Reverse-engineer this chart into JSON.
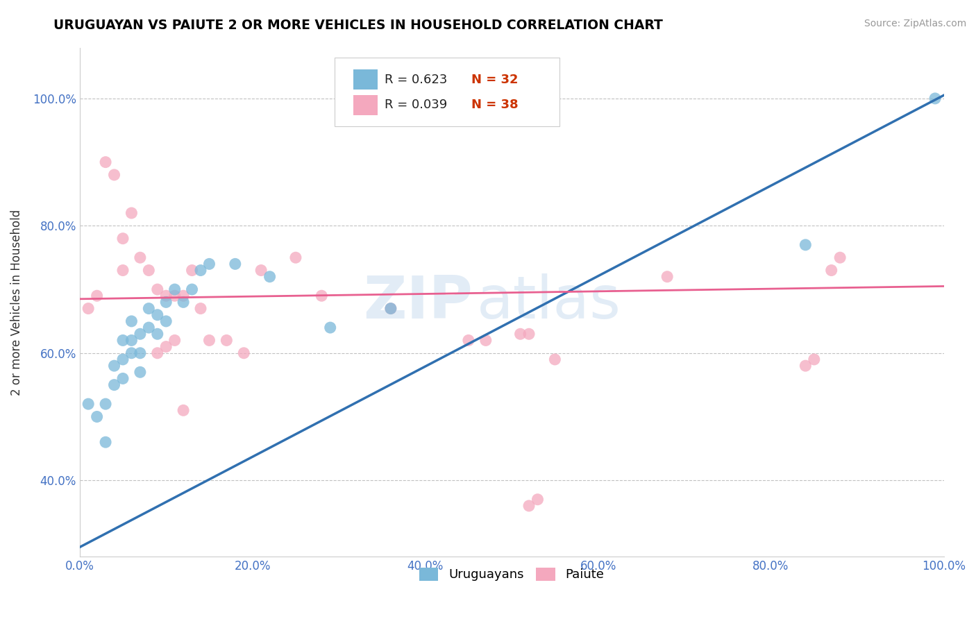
{
  "title": "URUGUAYAN VS PAIUTE 2 OR MORE VEHICLES IN HOUSEHOLD CORRELATION CHART",
  "source_text": "Source: ZipAtlas.com",
  "ylabel": "2 or more Vehicles in Household",
  "xlim": [
    0.0,
    1.0
  ],
  "ylim": [
    0.28,
    1.08
  ],
  "xticks": [
    0.0,
    0.2,
    0.4,
    0.6,
    0.8,
    1.0
  ],
  "yticks": [
    0.4,
    0.6,
    0.8,
    1.0
  ],
  "xticklabels": [
    "0.0%",
    "20.0%",
    "40.0%",
    "60.0%",
    "80.0%",
    "100.0%"
  ],
  "yticklabels": [
    "40.0%",
    "60.0%",
    "80.0%",
    "100.0%"
  ],
  "legend_r_blue": "R = 0.623",
  "legend_n_blue": "N = 32",
  "legend_r_pink": "R = 0.039",
  "legend_n_pink": "N = 38",
  "legend_label_blue": "Uruguayans",
  "legend_label_pink": "Paiute",
  "blue_color": "#7ab8d9",
  "pink_color": "#f4a8be",
  "trendline_blue_color": "#3070b0",
  "trendline_pink_color": "#e86090",
  "watermark_zip": "ZIP",
  "watermark_atlas": "atlas",
  "uruguayan_x": [
    0.01,
    0.02,
    0.03,
    0.03,
    0.04,
    0.04,
    0.05,
    0.05,
    0.05,
    0.06,
    0.06,
    0.06,
    0.07,
    0.07,
    0.07,
    0.08,
    0.08,
    0.09,
    0.09,
    0.1,
    0.1,
    0.11,
    0.12,
    0.13,
    0.14,
    0.15,
    0.18,
    0.22,
    0.29,
    0.36,
    0.84,
    0.99
  ],
  "uruguayan_y": [
    0.52,
    0.5,
    0.46,
    0.52,
    0.55,
    0.58,
    0.56,
    0.59,
    0.62,
    0.6,
    0.62,
    0.65,
    0.57,
    0.6,
    0.63,
    0.64,
    0.67,
    0.63,
    0.66,
    0.65,
    0.68,
    0.7,
    0.68,
    0.7,
    0.73,
    0.74,
    0.74,
    0.72,
    0.64,
    0.67,
    0.77,
    1.0
  ],
  "paiute_x": [
    0.01,
    0.02,
    0.03,
    0.04,
    0.05,
    0.05,
    0.06,
    0.07,
    0.08,
    0.09,
    0.1,
    0.11,
    0.12,
    0.13,
    0.14,
    0.15,
    0.17,
    0.19,
    0.21,
    0.25,
    0.28,
    0.36,
    0.45,
    0.47,
    0.51,
    0.52,
    0.55,
    0.68,
    0.84,
    0.85,
    0.87,
    0.88,
    0.09,
    0.1,
    0.11,
    0.12,
    0.52,
    0.53
  ],
  "paiute_y": [
    0.67,
    0.69,
    0.9,
    0.88,
    0.73,
    0.78,
    0.82,
    0.75,
    0.73,
    0.7,
    0.69,
    0.62,
    0.69,
    0.73,
    0.67,
    0.62,
    0.62,
    0.6,
    0.73,
    0.75,
    0.69,
    0.67,
    0.62,
    0.62,
    0.63,
    0.63,
    0.59,
    0.72,
    0.58,
    0.59,
    0.73,
    0.75,
    0.6,
    0.61,
    0.69,
    0.51,
    0.36,
    0.37
  ],
  "trendline_blue_x0": 0.0,
  "trendline_blue_y0": 0.295,
  "trendline_blue_x1": 1.0,
  "trendline_blue_y1": 1.005,
  "trendline_pink_x0": 0.0,
  "trendline_pink_y0": 0.685,
  "trendline_pink_x1": 1.0,
  "trendline_pink_y1": 0.705
}
